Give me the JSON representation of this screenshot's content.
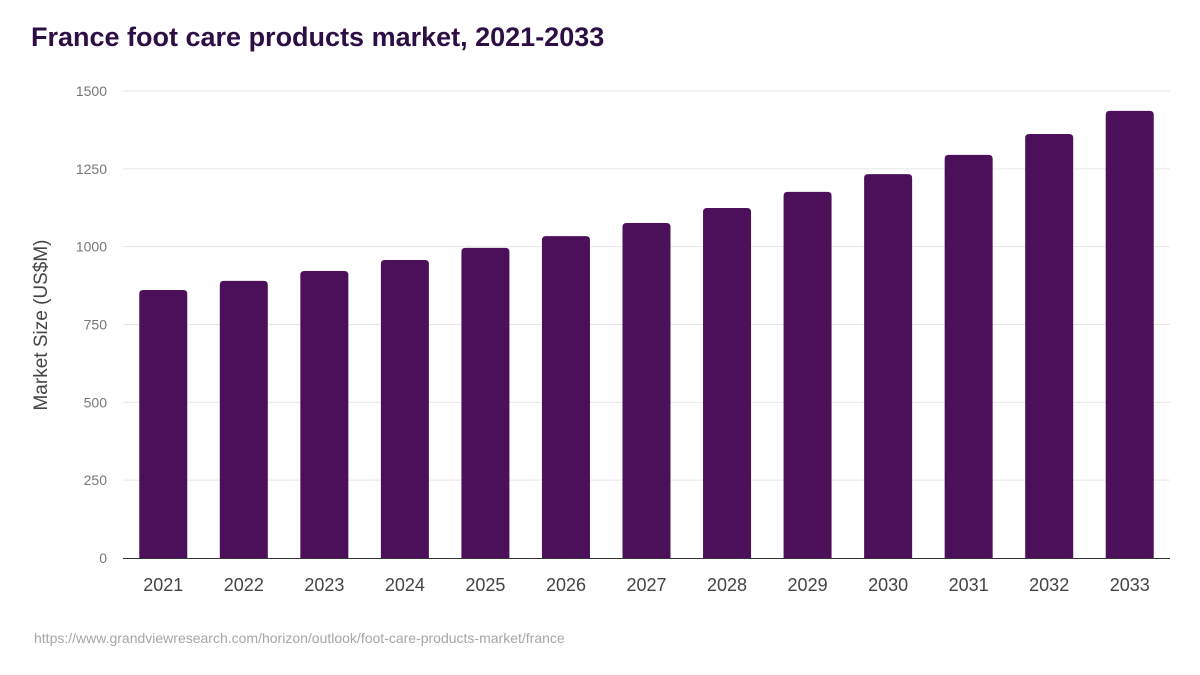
{
  "title": "France foot care products market, 2021-2033",
  "source": "https://www.grandviewresearch.com/horizon/outlook/foot-care-products-market/france",
  "colors": {
    "bar": "#4b1059",
    "grid": "#e6e6e6",
    "axis": "#333333"
  },
  "chart_data": {
    "type": "bar",
    "title": "France foot care products market, 2021-2033",
    "xlabel": "",
    "ylabel": "Market Size (US$M)",
    "ylim": [
      0,
      1500
    ],
    "yticks": [
      0,
      250,
      500,
      750,
      1000,
      1250,
      1500
    ],
    "grid": true,
    "categories": [
      "2021",
      "2022",
      "2023",
      "2024",
      "2025",
      "2026",
      "2027",
      "2028",
      "2029",
      "2030",
      "2031",
      "2032",
      "2033"
    ],
    "values": [
      861,
      890,
      922,
      957,
      996,
      1034,
      1076,
      1124,
      1176,
      1233,
      1295,
      1362,
      1436
    ]
  }
}
